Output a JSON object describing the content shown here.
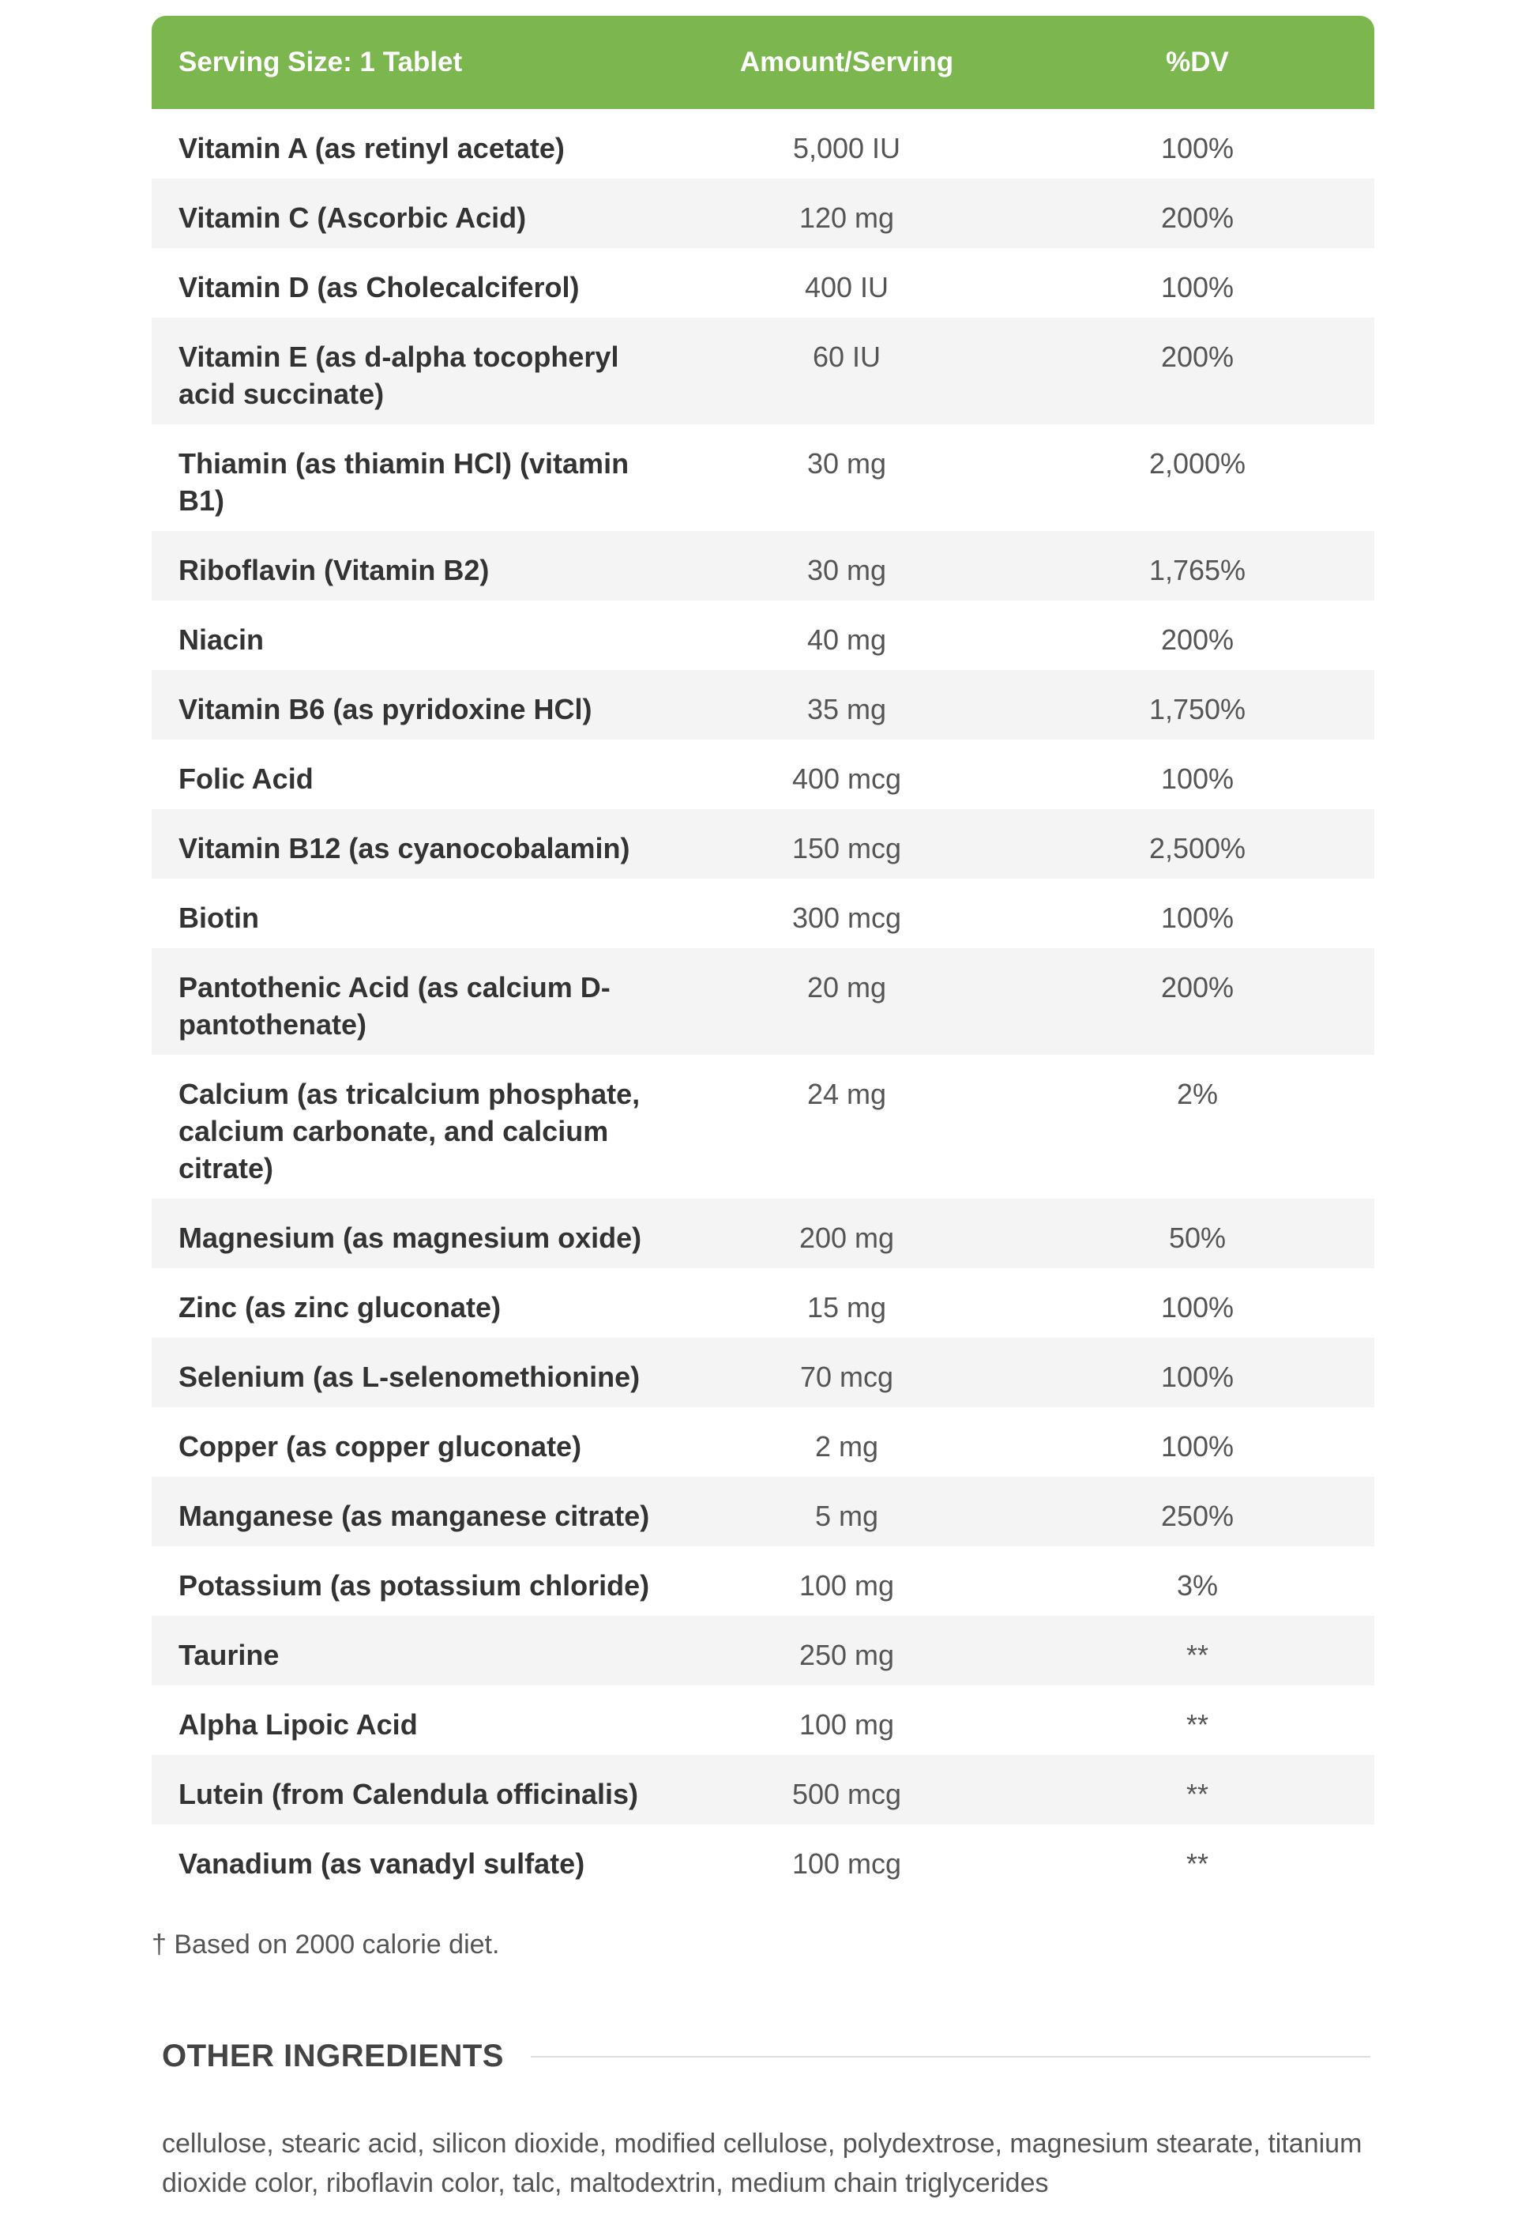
{
  "header": {
    "serving_size": "Serving Size: 1 Tablet",
    "amount_label": "Amount/Serving",
    "dv_label": "%DV"
  },
  "rows": [
    {
      "name": "Vitamin A (as retinyl acetate)",
      "amount": "5,000 IU",
      "dv": "100%"
    },
    {
      "name": "Vitamin C (Ascorbic Acid)",
      "amount": "120 mg",
      "dv": "200%"
    },
    {
      "name": "Vitamin D (as Cholecalciferol)",
      "amount": "400 IU",
      "dv": "100%"
    },
    {
      "name": "Vitamin E (as d-alpha tocopheryl acid succinate)",
      "amount": "60 IU",
      "dv": "200%"
    },
    {
      "name": "Thiamin (as thiamin HCl) (vitamin B1)",
      "amount": "30 mg",
      "dv": "2,000%"
    },
    {
      "name": "Riboflavin (Vitamin B2)",
      "amount": "30 mg",
      "dv": "1,765%"
    },
    {
      "name": "Niacin",
      "amount": "40 mg",
      "dv": "200%"
    },
    {
      "name": "Vitamin B6 (as pyridoxine HCl)",
      "amount": "35 mg",
      "dv": "1,750%"
    },
    {
      "name": "Folic Acid",
      "amount": "400 mcg",
      "dv": "100%"
    },
    {
      "name": "Vitamin B12 (as cyanocobalamin)",
      "amount": "150 mcg",
      "dv": "2,500%"
    },
    {
      "name": "Biotin",
      "amount": "300 mcg",
      "dv": "100%"
    },
    {
      "name": "Pantothenic Acid (as calcium D-pantothenate)",
      "amount": "20 mg",
      "dv": "200%"
    },
    {
      "name": "Calcium (as tricalcium phosphate, calcium carbonate, and calcium citrate)",
      "amount": "24 mg",
      "dv": "2%"
    },
    {
      "name": "Magnesium (as magnesium oxide)",
      "amount": "200 mg",
      "dv": "50%"
    },
    {
      "name": "Zinc (as zinc gluconate)",
      "amount": "15 mg",
      "dv": "100%"
    },
    {
      "name": "Selenium (as L-selenomethionine)",
      "amount": "70 mcg",
      "dv": "100%"
    },
    {
      "name": "Copper (as copper gluconate)",
      "amount": "2 mg",
      "dv": "100%"
    },
    {
      "name": "Manganese (as manganese citrate)",
      "amount": "5 mg",
      "dv": "250%"
    },
    {
      "name": "Potassium (as potassium chloride)",
      "amount": "100 mg",
      "dv": "3%"
    },
    {
      "name": "Taurine",
      "amount": "250 mg",
      "dv": "**"
    },
    {
      "name": "Alpha Lipoic Acid",
      "amount": "100 mg",
      "dv": "**"
    },
    {
      "name": "Lutein (from Calendula officinalis)",
      "amount": "500 mcg",
      "dv": "**"
    },
    {
      "name": "Vanadium (as vanadyl sulfate)",
      "amount": "100 mcg",
      "dv": "**"
    }
  ],
  "footnote": "† Based on 2000 calorie diet.",
  "other_ingredients": {
    "title": "OTHER INGREDIENTS",
    "text": "cellulose, stearic acid, silicon dioxide, modified cellulose, polydextrose, magnesium stearate, titanium dioxide color, riboflavin color, talc, maltodextrin, medium chain triglycerides"
  },
  "colors": {
    "header_bg": "#7cb64e",
    "row_alt_bg": "#f4f4f4"
  }
}
